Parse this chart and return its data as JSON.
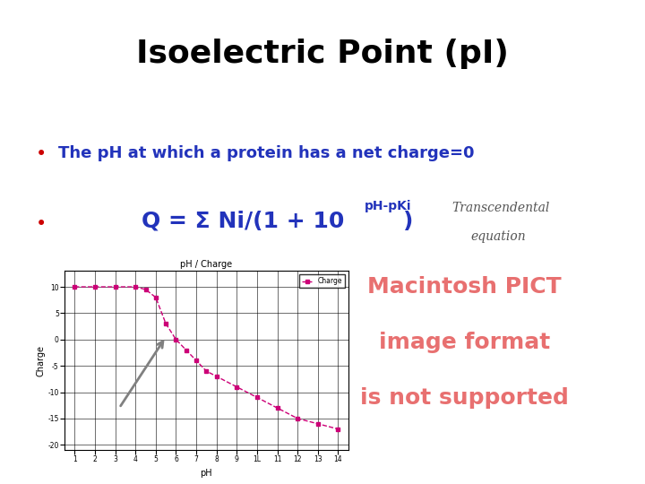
{
  "title": "Isoelectric Point (pI)",
  "title_fontsize": 26,
  "title_color": "#000000",
  "bullet1_text": "The pH at which a protein has a net charge=0",
  "bullet1_color": "#2233bb",
  "bullet_fontsize": 13,
  "bullet_color": "#cc0000",
  "equation_color": "#2233bb",
  "equation_fontsize": 18,
  "equation_sup_fontsize": 10,
  "transcendental_text1": "Transcendental",
  "transcendental_text2": "equation",
  "transcendental_color": "#555555",
  "transcendental_fontsize": 10,
  "macintosh_lines": [
    "Macintosh PICT",
    "image format",
    "is not supported"
  ],
  "macintosh_color": "#e87070",
  "macintosh_fontsize": 18,
  "background_color": "#ffffff",
  "chart_ph_values": [
    1,
    2,
    3,
    4,
    4.5,
    5,
    5.5,
    6,
    6.5,
    7,
    7.5,
    8,
    9,
    10,
    11,
    12,
    13,
    14
  ],
  "chart_charge_values": [
    10,
    10,
    10,
    10,
    9.5,
    8,
    3,
    0,
    -2,
    -4,
    -6,
    -7,
    -9,
    -11,
    -13,
    -15,
    -16,
    -17
  ],
  "chart_line_color": "#cc0077",
  "chart_marker": "s",
  "chart_title": "pH / Charge",
  "chart_xlabel": "pH",
  "chart_ylabel": "Charge"
}
